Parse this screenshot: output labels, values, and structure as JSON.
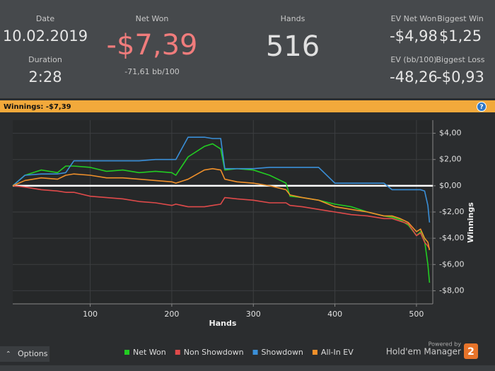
{
  "header": {
    "stats": [
      {
        "label": "Date",
        "value": "10.02.2019"
      },
      {
        "label": "Duration",
        "value": "2:28"
      },
      {
        "label": "Net Won",
        "value": "-$7,39",
        "sub": "-71,61 bb/100"
      },
      {
        "label": "Hands",
        "value": "516"
      },
      {
        "label": "EV Net Won",
        "value": "-$4,98"
      },
      {
        "label": "Biggest Win",
        "value": "$1,25"
      },
      {
        "label": "EV (bb/100)",
        "value": "-48,26"
      },
      {
        "label": "Biggest Loss",
        "value": "-$0,93"
      }
    ]
  },
  "banner": "Winnings: -$7,39",
  "help": "?",
  "footer": {
    "options": "Options",
    "powered_by": "Powered by",
    "brand": "Hold'em Manager",
    "badge": "2"
  },
  "chart_data": {
    "type": "line",
    "x_label": "Hands",
    "y_label": "Winnings",
    "x": [
      5,
      20,
      40,
      60,
      70,
      80,
      100,
      120,
      140,
      160,
      180,
      200,
      205,
      220,
      240,
      250,
      260,
      265,
      280,
      300,
      320,
      340,
      345,
      360,
      380,
      400,
      420,
      440,
      460,
      470,
      480,
      490,
      500,
      505,
      510,
      514,
      516
    ],
    "series": [
      {
        "name": "Net Won",
        "color": "#22cc22",
        "values": [
          0,
          0.8,
          1.2,
          1.0,
          1.5,
          1.5,
          1.4,
          1.1,
          1.2,
          1.0,
          1.1,
          1.0,
          0.8,
          2.2,
          3.0,
          3.2,
          2.8,
          1.2,
          1.3,
          1.2,
          0.8,
          0.2,
          -0.8,
          -0.9,
          -1.1,
          -1.4,
          -1.6,
          -2.0,
          -2.3,
          -2.4,
          -2.6,
          -3.0,
          -3.8,
          -3.5,
          -4.2,
          -6.0,
          -7.39
        ]
      },
      {
        "name": "Non Showdown",
        "color": "#e04a4a",
        "values": [
          0,
          -0.1,
          -0.3,
          -0.4,
          -0.5,
          -0.5,
          -0.8,
          -0.9,
          -1.0,
          -1.2,
          -1.3,
          -1.5,
          -1.4,
          -1.6,
          -1.6,
          -1.5,
          -1.4,
          -0.9,
          -1.0,
          -1.1,
          -1.3,
          -1.3,
          -1.5,
          -1.6,
          -1.8,
          -2.0,
          -2.2,
          -2.3,
          -2.5,
          -2.5,
          -2.7,
          -2.9,
          -3.8,
          -3.6,
          -4.3,
          -4.6,
          -4.8
        ]
      },
      {
        "name": "Showdown",
        "color": "#3a8fd8",
        "values": [
          0,
          0.8,
          0.9,
          0.9,
          1.0,
          1.9,
          1.9,
          1.9,
          1.9,
          1.9,
          2.0,
          2.0,
          2.0,
          3.7,
          3.7,
          3.6,
          3.6,
          1.3,
          1.3,
          1.3,
          1.4,
          1.4,
          1.4,
          1.4,
          1.4,
          0.2,
          0.2,
          0.2,
          0.2,
          -0.3,
          -0.3,
          -0.3,
          -0.3,
          -0.3,
          -0.4,
          -1.5,
          -2.8
        ]
      },
      {
        "name": "All-In EV",
        "color": "#f0902a",
        "values": [
          0,
          0.4,
          0.6,
          0.5,
          0.8,
          0.9,
          0.8,
          0.6,
          0.6,
          0.5,
          0.4,
          0.3,
          0.2,
          0.5,
          1.2,
          1.3,
          1.2,
          0.5,
          0.3,
          0.2,
          0,
          -0.3,
          -0.7,
          -0.9,
          -1.1,
          -1.6,
          -1.8,
          -2.0,
          -2.3,
          -2.3,
          -2.5,
          -2.8,
          -3.5,
          -3.3,
          -4.0,
          -4.3,
          -4.9
        ]
      }
    ],
    "xlim": [
      5,
      520
    ],
    "ylim": [
      -9,
      5
    ],
    "xticks": [
      100,
      200,
      300,
      400,
      500
    ],
    "yticks": [
      {
        "value": 4,
        "label": "$4,00"
      },
      {
        "value": 2,
        "label": "$2,00"
      },
      {
        "value": 0,
        "label": "$0,00"
      },
      {
        "value": -2,
        "label": "-$2,00"
      },
      {
        "value": -4,
        "label": "-$4,00"
      },
      {
        "value": -6,
        "label": "-$6,00"
      },
      {
        "value": -8,
        "label": "-$8,00"
      }
    ],
    "grid": true,
    "legend": "bottom"
  }
}
